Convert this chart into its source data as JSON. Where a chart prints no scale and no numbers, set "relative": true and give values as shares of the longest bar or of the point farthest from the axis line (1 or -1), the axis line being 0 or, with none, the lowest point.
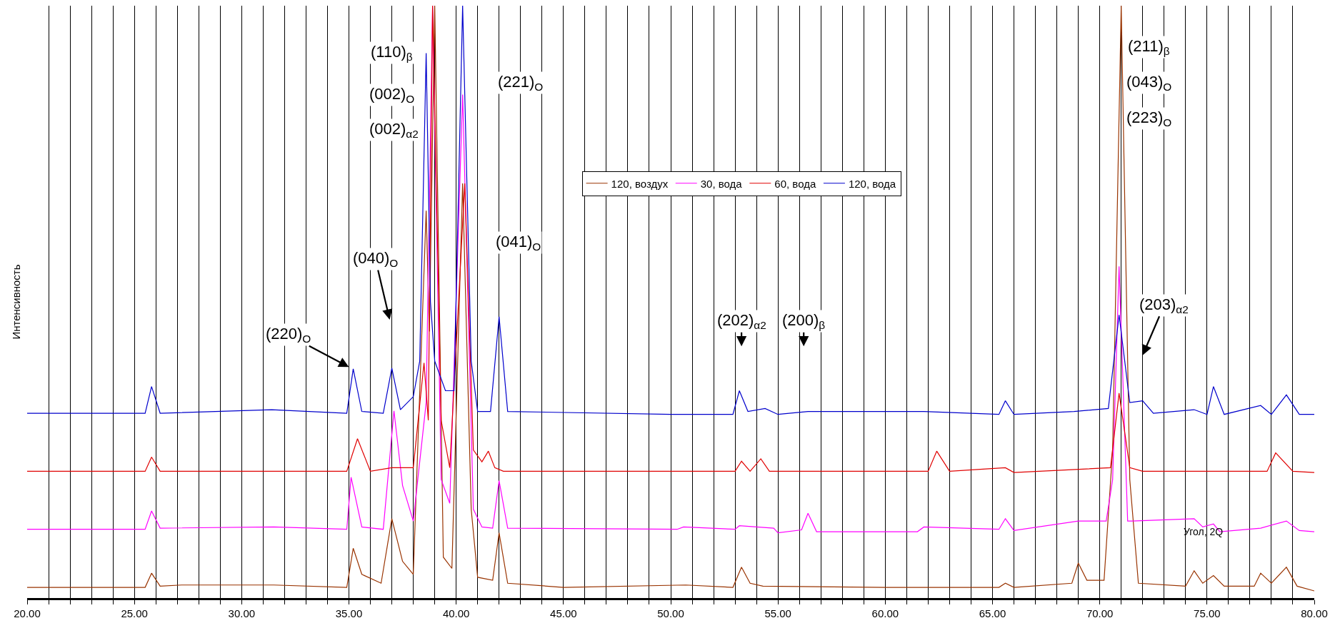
{
  "chart_data": {
    "type": "line",
    "relative": true,
    "xlabel": "Угол, 2Q",
    "ylabel": "Интенсивность",
    "grid": "x",
    "legend": "top",
    "marker": "none",
    "line_style": "solid",
    "xlim": [
      20,
      80
    ],
    "xticks": [
      {
        "value": 20,
        "label": "20.00"
      },
      {
        "value": 21,
        "label": null
      },
      {
        "value": 22,
        "label": null
      },
      {
        "value": 23,
        "label": null
      },
      {
        "value": 24,
        "label": null
      },
      {
        "value": 25,
        "label": "25.00"
      },
      {
        "value": 26,
        "label": null
      },
      {
        "value": 27,
        "label": null
      },
      {
        "value": 28,
        "label": null
      },
      {
        "value": 29,
        "label": null
      },
      {
        "value": 30,
        "label": "30.00"
      },
      {
        "value": 31,
        "label": null
      },
      {
        "value": 32,
        "label": null
      },
      {
        "value": 33,
        "label": null
      },
      {
        "value": 34,
        "label": null
      },
      {
        "value": 35,
        "label": "35.00"
      },
      {
        "value": 36,
        "label": null
      },
      {
        "value": 37,
        "label": null
      },
      {
        "value": 38,
        "label": null
      },
      {
        "value": 39,
        "label": null
      },
      {
        "value": 40,
        "label": "40.00"
      },
      {
        "value": 41,
        "label": null
      },
      {
        "value": 42,
        "label": null
      },
      {
        "value": 43,
        "label": null
      },
      {
        "value": 44,
        "label": null
      },
      {
        "value": 45,
        "label": "45.00"
      },
      {
        "value": 46,
        "label": null
      },
      {
        "value": 47,
        "label": null
      },
      {
        "value": 48,
        "label": null
      },
      {
        "value": 49,
        "label": null
      },
      {
        "value": 50,
        "label": "50.00"
      },
      {
        "value": 51,
        "label": null
      },
      {
        "value": 52,
        "label": null
      },
      {
        "value": 53,
        "label": null
      },
      {
        "value": 54,
        "label": null
      },
      {
        "value": 55,
        "label": "55.00"
      },
      {
        "value": 56,
        "label": null
      },
      {
        "value": 57,
        "label": null
      },
      {
        "value": 58,
        "label": null
      },
      {
        "value": 59,
        "label": null
      },
      {
        "value": 60,
        "label": "60.00"
      },
      {
        "value": 61,
        "label": null
      },
      {
        "value": 62,
        "label": null
      },
      {
        "value": 63,
        "label": null
      },
      {
        "value": 64,
        "label": null
      },
      {
        "value": 65,
        "label": "65.00"
      },
      {
        "value": 66,
        "label": null
      },
      {
        "value": 67,
        "label": null
      },
      {
        "value": 68,
        "label": null
      },
      {
        "value": 69,
        "label": null
      },
      {
        "value": 70,
        "label": "70.00"
      },
      {
        "value": 71,
        "label": null
      },
      {
        "value": 72,
        "label": null
      },
      {
        "value": 73,
        "label": null
      },
      {
        "value": 74,
        "label": null
      },
      {
        "value": 75,
        "label": "75.00"
      },
      {
        "value": 76,
        "label": null
      },
      {
        "value": 77,
        "label": null
      },
      {
        "value": 78,
        "label": null
      },
      {
        "value": 79,
        "label": null
      },
      {
        "value": 80,
        "label": "80.00"
      }
    ],
    "series": [
      {
        "name": "120, воздух",
        "color": "#993300",
        "x": [
          20,
          25.5,
          25.8,
          26.2,
          27.2,
          31.5,
          34.9,
          35.2,
          35.6,
          36.5,
          37.0,
          37.5,
          38.0,
          38.6,
          38.75,
          39.0,
          39.4,
          39.8,
          40.3,
          40.7,
          41.0,
          41.7,
          42.0,
          42.4,
          45,
          50.7,
          52.9,
          53.3,
          53.7,
          54.3,
          60,
          65.3,
          65.6,
          66,
          68.7,
          69.0,
          69.4,
          70.2,
          70.6,
          71.0,
          71.4,
          71.8,
          74,
          74.4,
          74.8,
          75.3,
          75.8,
          77.2,
          77.5,
          78.0,
          78.7,
          79.2,
          80
        ],
        "values": [
          0.018,
          0.018,
          0.042,
          0.02,
          0.022,
          0.022,
          0.018,
          0.084,
          0.04,
          0.025,
          0.134,
          0.062,
          0.04,
          0.654,
          0.45,
          1,
          0.069,
          0.05,
          0.7,
          0.15,
          0.035,
          0.03,
          0.11,
          0.025,
          0.018,
          0.022,
          0.018,
          0.052,
          0.025,
          0.02,
          0.018,
          0.018,
          0.025,
          0.018,
          0.025,
          0.059,
          0.03,
          0.03,
          0.25,
          1,
          0.2,
          0.025,
          0.02,
          0.046,
          0.025,
          0.038,
          0.02,
          0.02,
          0.042,
          0.025,
          0.052,
          0.02,
          0.012
        ]
      },
      {
        "name": "30, вода",
        "color": "#ff00ff",
        "x": [
          20,
          25.5,
          25.8,
          26.2,
          31.5,
          34.9,
          35.1,
          35.6,
          36.6,
          37.1,
          37.5,
          38.0,
          38.6,
          38.9,
          39.3,
          39.7,
          40.3,
          40.8,
          41.2,
          41.7,
          42.0,
          42.4,
          50.3,
          50.6,
          53.0,
          53.2,
          54.8,
          55.0,
          56.1,
          56.4,
          56.8,
          61.5,
          61.8,
          65.3,
          65.6,
          66,
          69.0,
          70.3,
          70.6,
          70.9,
          71.3,
          71.5,
          74.4,
          74.8,
          75.3,
          75.6,
          77.5,
          78.7,
          79.3,
          80
        ],
        "values": [
          0.116,
          0.116,
          0.147,
          0.118,
          0.12,
          0.116,
          0.204,
          0.12,
          0.116,
          0.316,
          0.19,
          0.13,
          0.33,
          1,
          0.2,
          0.16,
          0.85,
          0.15,
          0.12,
          0.118,
          0.198,
          0.118,
          0.116,
          0.12,
          0.116,
          0.122,
          0.118,
          0.11,
          0.115,
          0.143,
          0.112,
          0.112,
          0.12,
          0.116,
          0.134,
          0.114,
          0.13,
          0.13,
          0.2,
          0.56,
          0.13,
          0.13,
          0.134,
          0.12,
          0.125,
          0.112,
          0.118,
          0.13,
          0.114,
          0.112
        ]
      },
      {
        "name": "60, вода",
        "color": "#e00000",
        "x": [
          20,
          25.5,
          25.8,
          26.2,
          34.9,
          35.4,
          36,
          37.0,
          38.0,
          38.5,
          38.7,
          38.9,
          39.3,
          39.7,
          40.4,
          40.8,
          41.2,
          41.5,
          41.8,
          42.2,
          53,
          53.3,
          53.7,
          54.2,
          54.6,
          62.0,
          62.4,
          63,
          65.6,
          66,
          70.5,
          70.9,
          71.4,
          72,
          77.8,
          78.2,
          79,
          80
        ],
        "values": [
          0.214,
          0.214,
          0.238,
          0.214,
          0.214,
          0.269,
          0.214,
          0.22,
          0.22,
          0.397,
          0.3,
          1,
          0.3,
          0.22,
          0.7,
          0.25,
          0.23,
          0.248,
          0.22,
          0.214,
          0.214,
          0.231,
          0.214,
          0.235,
          0.214,
          0.214,
          0.248,
          0.214,
          0.22,
          0.212,
          0.22,
          0.346,
          0.22,
          0.214,
          0.214,
          0.245,
          0.214,
          0.212
        ]
      },
      {
        "name": "120, вода",
        "color": "#0000cc",
        "x": [
          20,
          25.5,
          25.8,
          26.2,
          31.4,
          34.9,
          35.2,
          35.6,
          36.6,
          37.0,
          37.4,
          38.0,
          38.3,
          38.6,
          38.8,
          39.0,
          39.5,
          39.9,
          40.3,
          40.7,
          41.0,
          41.6,
          42.0,
          42.4,
          50,
          52.9,
          53.2,
          53.6,
          54.4,
          55,
          56.4,
          61.8,
          65.3,
          65.6,
          66,
          68.8,
          70.4,
          70.9,
          71.4,
          72.0,
          72.5,
          74.4,
          75.0,
          75.3,
          75.8,
          77.5,
          78.0,
          78.7,
          79.3,
          80
        ],
        "values": [
          0.312,
          0.312,
          0.357,
          0.312,
          0.318,
          0.312,
          0.387,
          0.315,
          0.312,
          0.388,
          0.318,
          0.34,
          0.4,
          0.92,
          0.5,
          0.4,
          0.35,
          0.35,
          1,
          0.4,
          0.315,
          0.315,
          0.475,
          0.315,
          0.31,
          0.31,
          0.35,
          0.315,
          0.32,
          0.31,
          0.315,
          0.315,
          0.31,
          0.333,
          0.31,
          0.315,
          0.32,
          0.478,
          0.33,
          0.333,
          0.312,
          0.318,
          0.31,
          0.357,
          0.31,
          0.325,
          0.31,
          0.343,
          0.31,
          0.31
        ]
      }
    ],
    "annotations": [
      "(110)$_{β}$",
      "(002)$_{O}$",
      "(002)$_{α2}$",
      "(221)$_{O}$",
      "(041)$_{O}$",
      "(040)$_{O}$",
      "(220)$_{O}$",
      "(202)$_{α2}$",
      "(200)$_{β}$",
      "(211)$_{β}$",
      "(043)$_{O}$",
      "(223)$_{O}$",
      "(203)$_{α2}$"
    ]
  }
}
